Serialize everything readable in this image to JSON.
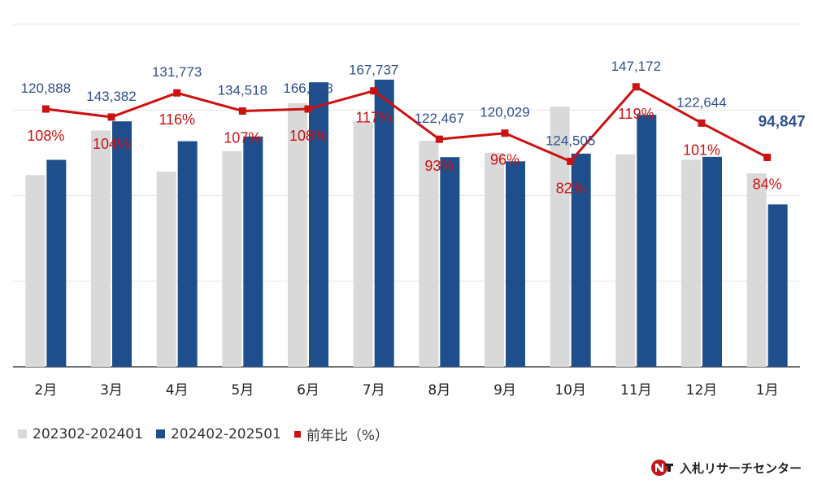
{
  "chart_data": {
    "type": "bar",
    "categories": [
      "2月",
      "3月",
      "4月",
      "5月",
      "6月",
      "7月",
      "8月",
      "9月",
      "10月",
      "11月",
      "12月",
      "1月"
    ],
    "series": [
      {
        "name": "202302-202401",
        "kind": "bar",
        "color": "#d9d9d9",
        "values": [
          112000,
          138000,
          114000,
          126000,
          154000,
          143000,
          132000,
          125000,
          152000,
          124000,
          121000,
          113000
        ]
      },
      {
        "name": "202402-202501",
        "kind": "bar",
        "color": "#1f4e8c",
        "values": [
          120888,
          143382,
          131773,
          134518,
          166188,
          167737,
          122467,
          120029,
          124505,
          147172,
          122644,
          94847
        ]
      },
      {
        "name": "前年比（%）",
        "kind": "line",
        "color": "#cc1111",
        "axis": "right",
        "values": [
          108,
          104,
          116,
          107,
          108,
          117,
          93,
          96,
          82,
          119,
          101,
          84
        ]
      }
    ],
    "volume_labels": [
      "120,888",
      "143,382",
      "131,773",
      "134,518",
      "166,188",
      "167,737",
      "122,467",
      "120,029",
      "124,505",
      "147,172",
      "122,644",
      "94,847"
    ],
    "percent_labels": [
      "108%",
      "104%",
      "116%",
      "107%",
      "108%",
      "117%",
      "93%",
      "96%",
      "82%",
      "119%",
      "101%",
      "84%"
    ],
    "ylim": [
      0,
      200000
    ],
    "ylim_right": [
      -20,
      150
    ],
    "grid": true,
    "legend_position": "bottom-left",
    "title": "",
    "xlabel": "",
    "ylabel": ""
  },
  "legend": [
    {
      "label": "202302-202401",
      "color": "#d9d9d9"
    },
    {
      "label": "202402-202501",
      "color": "#1f4e8c"
    },
    {
      "label": "前年比（%）",
      "color": "#cc1111"
    }
  ],
  "brand": {
    "name": "入札リサーチセンター"
  }
}
